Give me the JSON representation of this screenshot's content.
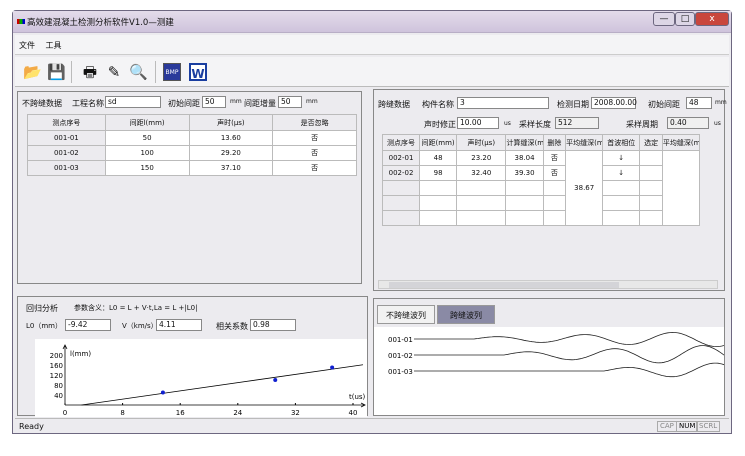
{
  "window": {
    "title": "高效建混凝土检测分析软件V1.0—测建",
    "buttons": {
      "minimize": "—",
      "maximize": "□",
      "close": "x"
    }
  },
  "menu": [
    "文件",
    "工具"
  ],
  "toolbar": [
    {
      "icon": "open-folder-icon",
      "glyph": "📂"
    },
    {
      "icon": "save-icon",
      "glyph": "💾"
    },
    {
      "icon": "print-icon",
      "glyph": "🖶"
    },
    {
      "icon": "print-setup-icon",
      "glyph": "✎"
    },
    {
      "icon": "print-preview-icon",
      "glyph": "🔍"
    },
    {
      "icon": "export-bmp-icon",
      "glyph": "BMP"
    },
    {
      "icon": "export-word-icon",
      "glyph": "W"
    }
  ],
  "left": {
    "section": "不跨缝数据",
    "project_label": "工程名称",
    "project_value": "sd",
    "init_spacing_label": "初始间距",
    "init_spacing": "50",
    "unit_mm": "mm",
    "increment_label": "间距增量",
    "increment": "50",
    "columns": [
      "测点序号",
      "间距l(mm)",
      "声时(μs)",
      "是否忽略"
    ],
    "rows": [
      [
        "001-01",
        "50",
        "13.60",
        "否"
      ],
      [
        "001-02",
        "100",
        "29.20",
        "否"
      ],
      [
        "001-03",
        "150",
        "37.10",
        "否"
      ]
    ]
  },
  "right": {
    "section": "跨缝数据",
    "member_label": "构件名称",
    "member_value": "3",
    "date_label": "检测日期",
    "date_value": "2008.00.00",
    "init_spacing_label": "初始间距",
    "init_spacing": "48",
    "unit_mm": "mm",
    "time_corr_label": "声时修正",
    "time_corr": "10.00",
    "unit_us": "us",
    "sample_len_label": "采样长度",
    "sample_len": "512",
    "sample_period_label": "采样周期",
    "sample_period": "0.40",
    "columns": [
      "测点序号",
      "间距(mm)",
      "声时(μs)",
      "计算缝深(mm)",
      "删除",
      "平均缝深(mm)",
      "首波相位",
      "选定",
      "平均缝深(mm)"
    ],
    "rows": [
      [
        "002-01",
        "48",
        "23.20",
        "38.04",
        "否",
        "",
        "↓",
        "",
        ""
      ],
      [
        "002-02",
        "98",
        "32.40",
        "39.30",
        "否",
        "",
        "↓",
        "",
        ""
      ],
      [
        "",
        "",
        "",
        "",
        "",
        "",
        "",
        "",
        ""
      ],
      [
        "",
        "",
        "",
        "",
        "",
        "",
        "",
        "",
        ""
      ],
      [
        "",
        "",
        "",
        "",
        "",
        "",
        "",
        "",
        ""
      ]
    ],
    "avg_depth": "38.67"
  },
  "regression": {
    "title": "回归分析",
    "formula": "参数含义：L0 = L + V·t,La = L +|L0|",
    "l0_label": "L0（mm）",
    "l0": "-9.42",
    "v_label": "V（km/s）",
    "v": "4.11",
    "r_label": "相关系数",
    "r": "0.98"
  },
  "chart_data": {
    "type": "scatter",
    "xlabel": "t(us)",
    "ylabel": "l(mm)",
    "xlim": [
      0,
      40
    ],
    "ylim": [
      0,
      200
    ],
    "xticks": [
      "0",
      "8",
      "16",
      "24",
      "32",
      "40"
    ],
    "yticks": [
      "40",
      "80",
      "120",
      "160",
      "200"
    ],
    "points": [
      {
        "x": 13.6,
        "y": 50
      },
      {
        "x": 29.2,
        "y": 100
      },
      {
        "x": 37.1,
        "y": 150
      }
    ],
    "fit": {
      "slope": 4.11,
      "intercept": -9.42
    }
  },
  "waves": {
    "tabs": [
      "不跨缝波列",
      "跨缝波列"
    ],
    "active_tab": 1,
    "labels": [
      "001-01",
      "001-02",
      "001-03"
    ]
  },
  "status": {
    "text": "Ready",
    "indicators": [
      "CAP",
      "NUM",
      "SCRL"
    ]
  }
}
